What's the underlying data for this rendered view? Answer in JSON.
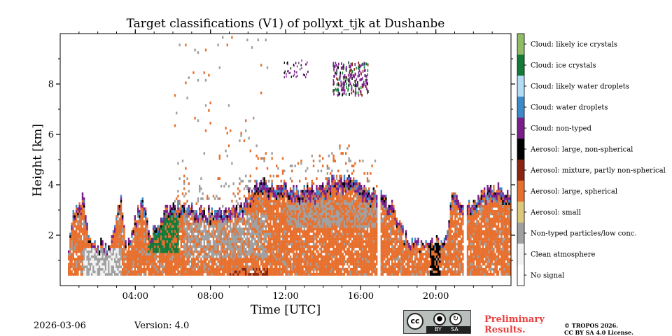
{
  "chart_data": {
    "type": "heatmap",
    "title": "Target classifications (V1) of pollyxt_tjk at Dushanbe",
    "xlabel": "Time [UTC]",
    "ylabel": "Height [km]",
    "x_range_hours": [
      0,
      24
    ],
    "y_range_km": [
      0,
      10
    ],
    "x_ticks": [
      {
        "value": 4,
        "label": "04:00"
      },
      {
        "value": 8,
        "label": "08:00"
      },
      {
        "value": 12,
        "label": "12:00"
      },
      {
        "value": 16,
        "label": "16:00"
      },
      {
        "value": 20,
        "label": "20:00"
      }
    ],
    "y_ticks": [
      {
        "value": 2,
        "label": "2"
      },
      {
        "value": 4,
        "label": "4"
      },
      {
        "value": 6,
        "label": "6"
      },
      {
        "value": 8,
        "label": "8"
      }
    ],
    "classes": [
      {
        "label": "Cloud: likely ice crystals",
        "color": "#8fbc66"
      },
      {
        "label": "Cloud: ice crystals",
        "color": "#137a3a"
      },
      {
        "label": "Cloud: likely water droplets",
        "color": "#b3dcf5"
      },
      {
        "label": "Cloud: water droplets",
        "color": "#3d8acb"
      },
      {
        "label": "Cloud: non-typed",
        "color": "#7a1f8a"
      },
      {
        "label": "Aerosol: large, non-spherical",
        "color": "#000000"
      },
      {
        "label": "Aerosol: mixture, partly non-spherical",
        "color": "#8a2410"
      },
      {
        "label": "Aerosol: large, spherical",
        "color": "#e8702e"
      },
      {
        "label": "Aerosol: small",
        "color": "#dcc77a"
      },
      {
        "label": "Non-typed particles/low conc.",
        "color": "#a0a0a0"
      },
      {
        "label": "Clean atmosphere",
        "color": "#f2f2f2"
      },
      {
        "label": "No signal",
        "color": "#ffffff"
      }
    ],
    "bands": [
      {
        "class": "Aerosol: large, spherical",
        "from_km": 0.5,
        "to_km": 2.8
      },
      {
        "class": "Non-typed particles/low conc.",
        "from_km": 1.0,
        "to_km": 3.6
      },
      {
        "class": "Aerosol: large, spherical",
        "from_km": 2.5,
        "to_km": 4.0
      },
      {
        "class": "Cloud: non-typed",
        "from_km": 3.4,
        "to_km": 4.4
      },
      {
        "class": "Cloud: ice crystals",
        "from_km": 1.4,
        "to_km": 3.0
      },
      {
        "class": "Cloud: non-typed",
        "from_km": 7.7,
        "to_km": 8.9
      }
    ]
  },
  "footer": {
    "date": "2026-03-06",
    "version": "Version: 4.0",
    "cc_label": "cc",
    "cc_by": "BY",
    "cc_sa": "SA",
    "preliminary_line1": "Preliminary",
    "preliminary_line2": "Results.",
    "copyright_line1": "© TROPOS 2026.",
    "copyright_line2": "CC BY SA 4.0 License."
  }
}
